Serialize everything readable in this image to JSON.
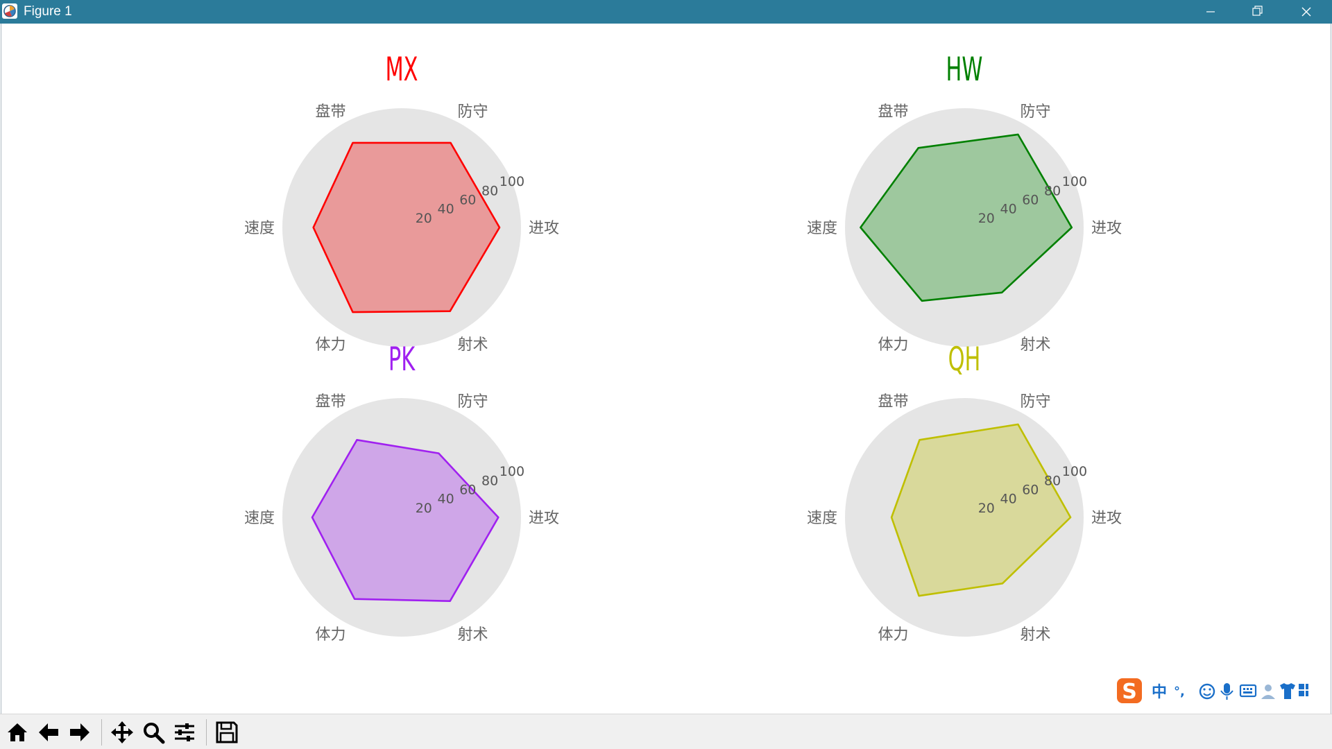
{
  "window": {
    "title": "Figure 1"
  },
  "ime": {
    "mode_label": "中",
    "punct_label": "°,"
  },
  "chart_data": [
    {
      "type": "radar",
      "title": "MX",
      "color": "#ff0000",
      "fill": "#e99a9a",
      "categories": [
        "进攻",
        "防守",
        "盘带",
        "速度",
        "体力",
        "射术"
      ],
      "values": [
        82,
        82,
        82,
        74,
        82,
        81
      ],
      "rlim": [
        0,
        100
      ],
      "r_ticks": [
        "20",
        "40",
        "60",
        "80",
        "100"
      ],
      "grid": false
    },
    {
      "type": "radar",
      "title": "HW",
      "color": "#008000",
      "fill": "#9ec89e",
      "categories": [
        "进攻",
        "防守",
        "盘带",
        "速度",
        "体力",
        "射术"
      ],
      "values": [
        90,
        90,
        77,
        87,
        71,
        63
      ],
      "rlim": [
        0,
        100
      ],
      "r_ticks": [
        "20",
        "40",
        "60",
        "80",
        "100"
      ],
      "grid": false
    },
    {
      "type": "radar",
      "title": "PK",
      "color": "#a020f0",
      "fill": "#cfa6e8",
      "categories": [
        "进攻",
        "防守",
        "盘带",
        "速度",
        "体力",
        "射术"
      ],
      "values": [
        81,
        62,
        75,
        75,
        79,
        81
      ],
      "rlim": [
        0,
        100
      ],
      "r_ticks": [
        "20",
        "40",
        "60",
        "80",
        "100"
      ],
      "grid": false
    },
    {
      "type": "radar",
      "title": "QH",
      "color": "#bfbf00",
      "fill": "#d9d99b",
      "categories": [
        "进攻",
        "防守",
        "盘带",
        "速度",
        "体力",
        "射术"
      ],
      "values": [
        89,
        90,
        75,
        61,
        76,
        64
      ],
      "rlim": [
        0,
        100
      ],
      "r_ticks": [
        "20",
        "40",
        "60",
        "80",
        "100"
      ],
      "grid": false
    }
  ]
}
